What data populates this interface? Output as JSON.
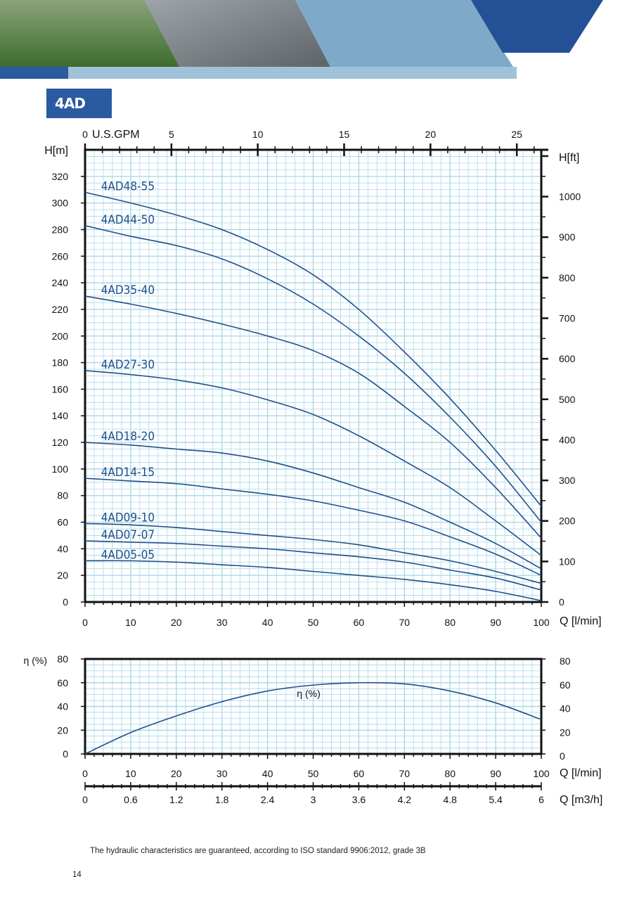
{
  "page": {
    "section_title": "4AD",
    "footnote": "The hydraulic characteristics are guaranteed, according to ISO standard 9906:2012, grade 3B",
    "page_number": "14"
  },
  "colors": {
    "curve": "#1f4f8a",
    "grid": "#a8d8ea",
    "axis": "#111111",
    "brand_blue": "#2a5aa0"
  },
  "chart_data": [
    {
      "type": "line",
      "title": "",
      "xlabel": "Q [l/min]",
      "ylabel": "H[m]",
      "ylabel_right": "H[ft]",
      "xlabel_top": "U.S.GPM",
      "xlim": [
        0,
        100
      ],
      "ylim": [
        0,
        340
      ],
      "x_ticks": [
        0,
        10,
        20,
        30,
        40,
        50,
        60,
        70,
        80,
        90,
        100
      ],
      "y_ticks": [
        0,
        20,
        40,
        60,
        80,
        100,
        120,
        140,
        160,
        180,
        200,
        220,
        240,
        260,
        280,
        300,
        320
      ],
      "top_ticks": [
        0,
        5,
        10,
        15,
        20,
        25
      ],
      "right_ticks": [
        0,
        100,
        200,
        300,
        400,
        500,
        600,
        700,
        800,
        900,
        1000
      ],
      "grid": true,
      "series": [
        {
          "name": "4AD48-55",
          "x": [
            0,
            10,
            20,
            30,
            40,
            50,
            60,
            70,
            80,
            90,
            100
          ],
          "y": [
            308,
            300,
            291,
            280,
            265,
            246,
            220,
            188,
            153,
            114,
            72
          ]
        },
        {
          "name": "4AD44-50",
          "x": [
            0,
            10,
            20,
            30,
            40,
            50,
            60,
            70,
            80,
            90,
            100
          ],
          "y": [
            283,
            275,
            268,
            258,
            243,
            224,
            200,
            172,
            139,
            102,
            60
          ]
        },
        {
          "name": "4AD35-40",
          "x": [
            0,
            10,
            20,
            30,
            40,
            50,
            60,
            70,
            80,
            90,
            100
          ],
          "y": [
            230,
            224,
            217,
            209,
            200,
            189,
            172,
            147,
            120,
            86,
            48
          ]
        },
        {
          "name": "4AD27-30",
          "x": [
            0,
            10,
            20,
            30,
            40,
            50,
            60,
            70,
            80,
            90,
            100
          ],
          "y": [
            174,
            171,
            167,
            161,
            152,
            141,
            125,
            106,
            86,
            61,
            35
          ]
        },
        {
          "name": "4AD18-20",
          "x": [
            0,
            10,
            20,
            30,
            40,
            50,
            60,
            70,
            80,
            90,
            100
          ],
          "y": [
            120,
            118,
            115,
            112,
            106,
            97,
            86,
            75,
            60,
            44,
            25
          ]
        },
        {
          "name": "4AD14-15",
          "x": [
            0,
            10,
            20,
            30,
            40,
            50,
            60,
            70,
            80,
            90,
            100
          ],
          "y": [
            93,
            91,
            89,
            85,
            81,
            76,
            69,
            61,
            49,
            36,
            20
          ]
        },
        {
          "name": "4AD09-10",
          "x": [
            0,
            10,
            20,
            30,
            40,
            50,
            60,
            70,
            80,
            90,
            100
          ],
          "y": [
            59,
            58,
            56,
            53,
            50,
            47,
            43,
            37,
            31,
            23,
            14
          ]
        },
        {
          "name": "4AD07-07",
          "x": [
            0,
            10,
            20,
            30,
            40,
            50,
            60,
            70,
            80,
            90,
            100
          ],
          "y": [
            46,
            45,
            44,
            42,
            40,
            37,
            34,
            30,
            24,
            18,
            9
          ]
        },
        {
          "name": "4AD05-05",
          "x": [
            0,
            10,
            20,
            30,
            40,
            50,
            60,
            70,
            80,
            90,
            100
          ],
          "y": [
            31,
            31,
            30,
            28,
            26,
            23,
            20,
            17,
            13,
            8,
            1
          ]
        }
      ]
    },
    {
      "type": "line",
      "title": "",
      "xlabel": "Q [l/min]",
      "xlabel_secondary": "Q [m3/h]",
      "ylabel": "η (%)",
      "xlim": [
        0,
        100
      ],
      "ylim": [
        0,
        80
      ],
      "x_ticks": [
        0,
        10,
        20,
        30,
        40,
        50,
        60,
        70,
        80,
        90,
        100
      ],
      "x_ticks_secondary": [
        "0",
        "0.6",
        "1.2",
        "1.8",
        "2.4",
        "3",
        "3.6",
        "4.2",
        "4.8",
        "5.4",
        "6"
      ],
      "y_ticks": [
        0,
        20,
        40,
        60,
        80
      ],
      "grid": true,
      "series": [
        {
          "name": "η (%)",
          "x": [
            0,
            10,
            20,
            30,
            40,
            50,
            60,
            70,
            80,
            90,
            100
          ],
          "y": [
            0,
            18,
            32,
            44,
            53,
            58,
            60,
            59,
            53,
            43,
            29
          ]
        }
      ]
    }
  ]
}
